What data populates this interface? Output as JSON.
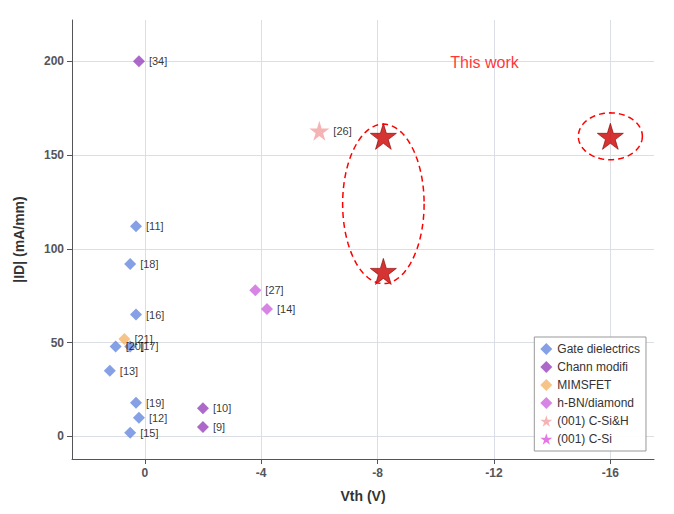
{
  "chart_data": {
    "type": "scatter",
    "xlabel": "Vth (V)",
    "ylabel": "|ID| (mA/mm)",
    "xlim": [
      2.5,
      -17.5
    ],
    "ylim": [
      -12,
      222
    ],
    "xticks": [
      0,
      -4,
      -8,
      -12,
      -16
    ],
    "yticks": [
      0,
      50,
      100,
      150,
      200
    ],
    "grid": true,
    "legend": "lower right",
    "series": [
      {
        "name": "Gate dielectrics",
        "color": "#6688dd",
        "marker": "diamond",
        "x": [
          0.3,
          0.5,
          0.3,
          0.5,
          1.0,
          1.2,
          0.3,
          0.2,
          0.5
        ],
        "y": [
          112,
          92,
          65,
          48,
          48,
          35,
          18,
          10,
          2
        ],
        "labels": [
          "[11]",
          "[18]",
          "[16]",
          "[17]",
          "[20]",
          "[13]",
          "[19]",
          "[12]",
          "[15]"
        ]
      },
      {
        "name": "Chann modifi",
        "color": "#9944bb",
        "marker": "diamond",
        "x": [
          0.2,
          -2.0,
          -2.0
        ],
        "y": [
          200,
          15,
          5
        ],
        "labels": [
          "[34]",
          "[10]",
          "[9]"
        ]
      },
      {
        "name": "MIMSFET",
        "color": "#f4b56a",
        "marker": "diamond",
        "x": [
          0.7
        ],
        "y": [
          52
        ],
        "labels": [
          "[21]"
        ]
      },
      {
        "name": "h-BN/diamond",
        "color": "#cc66dd",
        "marker": "diamond",
        "x": [
          -3.8,
          -4.2
        ],
        "y": [
          78,
          68
        ],
        "labels": [
          "[27]",
          "[14]"
        ]
      },
      {
        "name": "(001) C-Si&H",
        "color": "#f4a0a0",
        "marker": "star",
        "x": [
          -6.0
        ],
        "y": [
          163
        ],
        "labels": [
          "[26]"
        ]
      },
      {
        "name": "(001) C-Si",
        "color": "#dd55dd",
        "marker": "star",
        "x": [],
        "y": [],
        "labels": []
      }
    ],
    "highlight_points": {
      "color": "#cc0000",
      "marker": "star",
      "x": [
        -8.2,
        -8.2,
        -16.0
      ],
      "y": [
        160,
        88,
        160
      ]
    },
    "ellipses": {
      "color": "#ff0000",
      "line_style": "dashed",
      "cx": [
        -8.2,
        -16.0
      ],
      "cy": [
        124,
        160
      ],
      "width": [
        2.8,
        2.2
      ],
      "height": [
        85,
        25
      ]
    },
    "annotations": [
      {
        "text": "This work",
        "x": -10.5,
        "y": 195,
        "color": "#ff0000"
      }
    ]
  }
}
